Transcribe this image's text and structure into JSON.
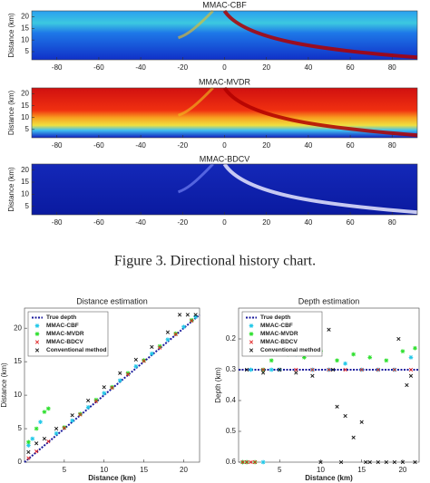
{
  "chart_data": [
    {
      "type": "heatmap",
      "title": "MMAC-CBF",
      "ylabel": "Distance (km)",
      "xlim": [
        -92,
        92
      ],
      "ylim": [
        1.5,
        22.5
      ],
      "xticks": [
        -80,
        -60,
        -40,
        -20,
        0,
        20,
        40,
        60,
        80
      ],
      "yticks": [
        5,
        10,
        15,
        20
      ]
    },
    {
      "type": "heatmap",
      "title": "MMAC-MVDR",
      "ylabel": "Distance (km)",
      "xlim": [
        -92,
        92
      ],
      "ylim": [
        1.5,
        22.5
      ],
      "xticks": [
        -80,
        -60,
        -40,
        -20,
        0,
        20,
        40,
        60,
        80
      ],
      "yticks": [
        5,
        10,
        15,
        20
      ]
    },
    {
      "type": "heatmap",
      "title": "MMAC-BDCV",
      "ylabel": "Distance (km)",
      "xlim": [
        -92,
        92
      ],
      "ylim": [
        1.5,
        22.5
      ],
      "xticks": [
        -80,
        -60,
        -40,
        -20,
        0,
        20,
        40,
        60,
        80
      ],
      "yticks": [
        5,
        10,
        15,
        20
      ]
    },
    {
      "type": "scatter",
      "title": "Distance estimation",
      "xlabel": "Distance (km)",
      "ylabel": "Distance (km)",
      "xlim": [
        0,
        22
      ],
      "ylim": [
        0,
        23
      ],
      "xticks": [
        5,
        10,
        15,
        20
      ],
      "yticks": [
        0,
        5,
        10,
        15,
        20
      ],
      "y_reversed": false,
      "series": [
        {
          "name": "True depth",
          "color": "#1a1a9c",
          "marker": "line",
          "x": [
            0,
            22
          ],
          "values": [
            0,
            22
          ]
        },
        {
          "name": "MMAC-CBF",
          "color": "#22c8e8",
          "marker": "star",
          "x": [
            0.5,
            1,
            2,
            4,
            6,
            8,
            10,
            12,
            14,
            16,
            18,
            20,
            21.5
          ],
          "values": [
            2.5,
            3.5,
            6,
            4.3,
            6.2,
            8.2,
            10.3,
            12.2,
            14.3,
            16.2,
            18.3,
            20.2,
            21.7
          ]
        },
        {
          "name": "MMAC-MVDR",
          "color": "#2ee02e",
          "marker": "star",
          "x": [
            0.5,
            1.5,
            2.5,
            3,
            5,
            7,
            9,
            11,
            13,
            15,
            17,
            19,
            21
          ],
          "values": [
            3,
            5,
            7.5,
            8,
            5.2,
            7.2,
            9.3,
            11.2,
            13.3,
            15.2,
            17.3,
            19.2,
            21.2
          ]
        },
        {
          "name": "MMAC-BDCV",
          "color": "#e02020",
          "marker": "x",
          "x": [
            0.5,
            1.5,
            3,
            5,
            7,
            9,
            11,
            13,
            15,
            17,
            19,
            21
          ],
          "values": [
            0.6,
            1.6,
            3.1,
            5.1,
            7.1,
            9.1,
            11.1,
            13.1,
            15.1,
            17.1,
            19.1,
            21.1
          ]
        },
        {
          "name": "Conventional method",
          "color": "#111111",
          "marker": "x",
          "x": [
            0.5,
            1.5,
            2.5,
            4,
            6,
            8,
            10,
            12,
            14,
            16,
            18,
            19.5,
            20.5,
            21.5
          ],
          "values": [
            1.5,
            2.8,
            3.5,
            5,
            7,
            9.2,
            11.2,
            13.3,
            15.3,
            17.2,
            19.4,
            22,
            22,
            22
          ]
        }
      ]
    },
    {
      "type": "scatter",
      "title": "Depth estimation",
      "xlabel": "Distance (km)",
      "ylabel": "Depth (km)",
      "xlim": [
        0,
        22
      ],
      "ylim": [
        0.1,
        0.6
      ],
      "xticks": [
        5,
        10,
        15,
        20
      ],
      "yticks": [
        0.2,
        0.3,
        0.4,
        0.5,
        0.6
      ],
      "y_reversed": true,
      "series": [
        {
          "name": "True depth",
          "color": "#1a1a9c",
          "marker": "line",
          "x": [
            0,
            22
          ],
          "values": [
            0.3,
            0.3
          ]
        },
        {
          "name": "MMAC-CBF",
          "color": "#22c8e8",
          "marker": "star",
          "x": [
            0.5,
            1,
            1.5,
            3,
            4,
            5,
            7,
            9,
            11,
            13,
            15,
            17,
            19,
            21
          ],
          "values": [
            0.6,
            0.6,
            0.3,
            0.6,
            0.3,
            0.3,
            0.25,
            0.3,
            0.3,
            0.28,
            0.3,
            0.3,
            0.3,
            0.26
          ]
        },
        {
          "name": "MMAC-MVDR",
          "color": "#2ee02e",
          "marker": "star",
          "x": [
            0.5,
            1,
            2,
            3,
            4,
            5,
            6,
            8,
            10,
            12,
            14,
            16,
            18,
            20,
            21.5
          ],
          "values": [
            0.6,
            0.6,
            0.6,
            0.3,
            0.27,
            0.23,
            0.25,
            0.26,
            0.24,
            0.27,
            0.25,
            0.26,
            0.27,
            0.24,
            0.23
          ]
        },
        {
          "name": "MMAC-BDCV",
          "color": "#e02020",
          "marker": "x",
          "x": [
            0.5,
            1,
            1.5,
            2,
            3,
            5,
            7,
            9,
            11,
            13,
            15,
            17,
            19,
            21
          ],
          "values": [
            0.6,
            0.6,
            0.6,
            0.6,
            0.3,
            0.3,
            0.3,
            0.3,
            0.3,
            0.3,
            0.3,
            0.3,
            0.3,
            0.3
          ]
        },
        {
          "name": "Conventional method",
          "color": "#111111",
          "marker": "x",
          "x": [
            1,
            3,
            5,
            7,
            9,
            10,
            11,
            11.5,
            12,
            12.5,
            13,
            14,
            15,
            15.5,
            16,
            17,
            18,
            19,
            19.5,
            20,
            20.5,
            21,
            21.5
          ],
          "values": [
            0.3,
            0.31,
            0.3,
            0.31,
            0.32,
            0.6,
            0.17,
            0.3,
            0.42,
            0.6,
            0.45,
            0.52,
            0.47,
            0.6,
            0.6,
            0.6,
            0.6,
            0.6,
            0.2,
            0.6,
            0.35,
            0.32,
            0.6
          ]
        }
      ]
    }
  ],
  "caption": "Figure 3. Directional history chart."
}
